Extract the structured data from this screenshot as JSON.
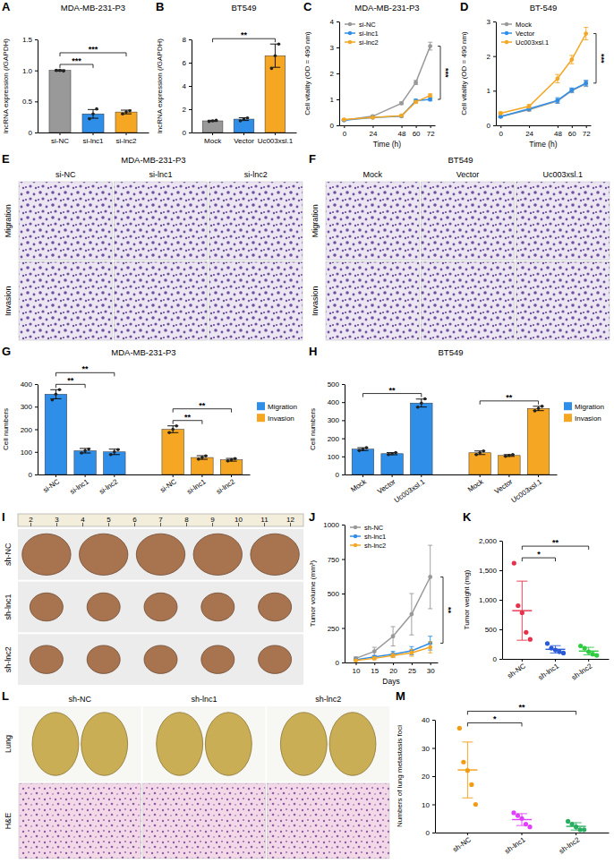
{
  "chart_data": [
    {
      "panel": "A",
      "type": "bar",
      "title": "MDA-MB-231-P3",
      "ylabel": "lncRNA expression (/GAPDH)",
      "categories": [
        "si-NC",
        "si-lnc1",
        "si-lnc2"
      ],
      "values": [
        1.0,
        0.3,
        0.33
      ],
      "errors": [
        0.01,
        0.07,
        0.03
      ],
      "points": [
        [
          1.0,
          1.0,
          0.99
        ],
        [
          0.22,
          0.3,
          0.38
        ],
        [
          0.3,
          0.33,
          0.35
        ]
      ],
      "colors": [
        "#999999",
        "#2f8fe8",
        "#f5a623"
      ],
      "ylim": [
        0,
        1.5
      ],
      "yticks": [
        0,
        0.5,
        {
          "value": 1,
          "label": "1.0"
        },
        1.5
      ],
      "annotations": [
        {
          "text": "***",
          "from": 0,
          "to": 1
        },
        {
          "text": "***",
          "from": 0,
          "to": 2
        }
      ]
    },
    {
      "panel": "B",
      "type": "bar",
      "title": "BT549",
      "ylabel": "lncRNA expression (/GAPDH)",
      "categories": [
        "Mock",
        "Vector",
        "Uc003xsl.1"
      ],
      "values": [
        1.0,
        1.15,
        6.6
      ],
      "errors": [
        0.05,
        0.12,
        1.0
      ],
      "points": [
        [
          0.95,
          1.0,
          1.05
        ],
        [
          1.0,
          1.15,
          1.25
        ],
        [
          5.5,
          6.6,
          7.6
        ]
      ],
      "colors": [
        "#999999",
        "#2f8fe8",
        "#f5a623"
      ],
      "ylim": [
        0,
        8
      ],
      "yticks": [
        0,
        2,
        4,
        6,
        8
      ],
      "annotations": [
        {
          "text": "**",
          "from": 0,
          "to": 2
        }
      ]
    },
    {
      "panel": "C",
      "type": "line",
      "title": "MDA-MB-231-P3",
      "xlabel": "Time (h)",
      "ylabel": "Cell vitality (OD = 490 nm)",
      "x": [
        0,
        24,
        48,
        60,
        72
      ],
      "xlim": [
        -4,
        76
      ],
      "xticks": [
        0,
        24,
        48,
        60,
        72
      ],
      "ylim": [
        0,
        4
      ],
      "yticks": [
        0,
        1,
        2,
        3,
        4
      ],
      "legend": "upper left",
      "marker": "circle",
      "series": [
        {
          "name": "si-NC",
          "color": "#999999",
          "values": [
            0.2,
            0.35,
            0.85,
            1.65,
            3.05
          ],
          "errors": [
            0.02,
            0.03,
            0.05,
            0.08,
            0.15
          ]
        },
        {
          "name": "si-lnc1",
          "color": "#2f8fe8",
          "values": [
            0.2,
            0.3,
            0.35,
            0.95,
            1.0
          ],
          "errors": [
            0.02,
            0.02,
            0.03,
            0.05,
            0.06
          ]
        },
        {
          "name": "si-lnc2",
          "color": "#f5a623",
          "values": [
            0.22,
            0.3,
            0.37,
            0.9,
            1.15
          ],
          "errors": [
            0.02,
            0.02,
            0.03,
            0.05,
            0.06
          ]
        }
      ],
      "annotations": [
        {
          "text": "***",
          "from": 0,
          "to": 1
        }
      ]
    },
    {
      "panel": "D",
      "type": "line",
      "title": "BT-549",
      "xlabel": "Time (h)",
      "ylabel": "Cell vitality (OD = 490 nm)",
      "x": [
        0,
        24,
        48,
        60,
        72
      ],
      "xlim": [
        -4,
        76
      ],
      "xticks": [
        0,
        24,
        48,
        60,
        72
      ],
      "ylim": [
        0,
        3
      ],
      "yticks": [
        0,
        1,
        2,
        3
      ],
      "legend": "upper left",
      "marker": "circle",
      "series": [
        {
          "name": "Mock",
          "color": "#999999",
          "values": [
            0.25,
            0.45,
            0.7,
            1.0,
            1.2
          ],
          "errors": [
            0.02,
            0.04,
            0.06,
            0.06,
            0.08
          ]
        },
        {
          "name": "Vector",
          "color": "#2f8fe8",
          "values": [
            0.25,
            0.48,
            0.72,
            1.02,
            1.22
          ],
          "errors": [
            0.02,
            0.04,
            0.08,
            0.06,
            0.08
          ]
        },
        {
          "name": "Uc003xsl.1",
          "color": "#f5a623",
          "values": [
            0.35,
            0.55,
            1.35,
            1.9,
            2.65
          ],
          "errors": [
            0.03,
            0.05,
            0.12,
            0.12,
            0.18
          ]
        }
      ],
      "annotations": [
        {
          "text": "***",
          "from": 2,
          "to": 1
        }
      ]
    },
    {
      "panel": "E",
      "type": "image",
      "title": "MDA-MB-231-P3",
      "columns": [
        "si-NC",
        "si-lnc1",
        "si-lnc2"
      ],
      "rows": [
        "Migration",
        "Invasion"
      ]
    },
    {
      "panel": "F",
      "type": "image",
      "title": "BT549",
      "columns": [
        "Mock",
        "Vector",
        "Uc003xsl.1"
      ],
      "rows": [
        "Migration",
        "Invasion"
      ]
    },
    {
      "panel": "G",
      "type": "bar",
      "title": "MDA-MB-231-P3",
      "ylabel": "Cell numbers",
      "categories": [
        "si-NC",
        "si-lnc1",
        "si-lnc2"
      ],
      "ylim": [
        0,
        400
      ],
      "yticks": [
        0,
        100,
        200,
        300,
        400
      ],
      "legend": "right",
      "series": [
        {
          "name": "Migration",
          "color": "#2f8fe8",
          "values": [
            355,
            105,
            100
          ],
          "errors": [
            20,
            10,
            12
          ],
          "points": [
            [
              330,
              355,
              375
            ],
            [
              95,
              105,
              112
            ],
            [
              88,
              100,
              110
            ]
          ]
        },
        {
          "name": "Invasion",
          "color": "#f5a623",
          "values": [
            200,
            75,
            65
          ],
          "errors": [
            15,
            8,
            6
          ],
          "points": [
            [
              185,
              200,
              215
            ],
            [
              68,
              75,
              82
            ],
            [
              60,
              65,
              70
            ]
          ]
        }
      ],
      "annotations": [
        {
          "text": "**",
          "series": 0,
          "from": 0,
          "to": 1
        },
        {
          "text": "**",
          "series": 0,
          "from": 0,
          "to": 2
        },
        {
          "text": "**",
          "series": 1,
          "from": 0,
          "to": 1
        },
        {
          "text": "**",
          "series": 1,
          "from": 0,
          "to": 2
        }
      ]
    },
    {
      "panel": "H",
      "type": "bar",
      "title": "BT549",
      "ylabel": "Cell numbers",
      "categories": [
        "Mock",
        "Vector",
        "Uc003xsl.1"
      ],
      "ylim": [
        0,
        500
      ],
      "yticks": [
        0,
        100,
        200,
        300,
        400,
        500
      ],
      "legend": "right",
      "series": [
        {
          "name": "Migration",
          "color": "#2f8fe8",
          "values": [
            140,
            115,
            395
          ],
          "errors": [
            8,
            6,
            22
          ],
          "points": [
            [
              132,
              140,
              148
            ],
            [
              110,
              115,
              121
            ],
            [
              372,
              395,
              418
            ]
          ]
        },
        {
          "name": "Invasion",
          "color": "#f5a623",
          "values": [
            120,
            105,
            365
          ],
          "errors": [
            10,
            5,
            12
          ],
          "points": [
            [
              110,
              120,
              130
            ],
            [
              100,
              105,
              110
            ],
            [
              352,
              365,
              377
            ]
          ]
        }
      ],
      "annotations": [
        {
          "text": "**",
          "series": 0,
          "from": 0,
          "to": 2
        },
        {
          "text": "**",
          "series": 1,
          "from": 0,
          "to": 2
        }
      ]
    },
    {
      "panel": "I",
      "type": "image",
      "rows": [
        "sh-NC",
        "sh-lnc1",
        "sh-lnc2"
      ],
      "ruler": [
        2,
        3,
        4,
        5,
        6,
        7,
        8,
        9,
        10,
        11,
        12
      ]
    },
    {
      "panel": "J",
      "type": "line",
      "xlabel": "Days",
      "ylabel": "Tumor volume (mm³)",
      "x": [
        10,
        15,
        20,
        25,
        30
      ],
      "xlim": [
        7,
        32
      ],
      "xticks": [
        10,
        15,
        20,
        25,
        30
      ],
      "ylim": [
        0,
        1000
      ],
      "yticks": [
        0,
        250,
        500,
        750,
        1000
      ],
      "legend": "upper left",
      "marker": "circle",
      "series": [
        {
          "name": "sh-NC",
          "color": "#999999",
          "values": [
            30,
            80,
            190,
            350,
            620
          ],
          "errors": [
            10,
            30,
            70,
            150,
            230
          ]
        },
        {
          "name": "sh-lnc1",
          "color": "#2f8fe8",
          "values": [
            20,
            40,
            60,
            85,
            140
          ],
          "errors": [
            5,
            10,
            20,
            30,
            50
          ]
        },
        {
          "name": "sh-lnc2",
          "color": "#f5a623",
          "values": [
            15,
            30,
            50,
            70,
            110
          ],
          "errors": [
            5,
            10,
            15,
            25,
            40
          ]
        }
      ],
      "annotations": [
        {
          "text": "**",
          "from": 0,
          "to": 1
        }
      ]
    },
    {
      "panel": "K",
      "type": "scatter",
      "ylabel": "Tumor weight (mg)",
      "categories": [
        "sh-NC",
        "sh-lnc1",
        "sh-lnc2"
      ],
      "points": [
        [
          1620,
          900,
          780,
          450,
          330
        ],
        [
          260,
          180,
          150,
          120,
          100
        ],
        [
          220,
          180,
          120,
          80,
          60
        ]
      ],
      "values": [
        816,
        162,
        132
      ],
      "errors": [
        500,
        62,
        64
      ],
      "colors": [
        "#e8304a",
        "#2a5bd7",
        "#2ecc40"
      ],
      "ylim": [
        0,
        2000
      ],
      "yticks": [
        0,
        500,
        {
          "value": 1000,
          "label": "1,000"
        },
        {
          "value": 1500,
          "label": "1,500"
        },
        {
          "value": 2000,
          "label": "2,000"
        }
      ],
      "annotations": [
        {
          "text": "*",
          "from": 0,
          "to": 1
        },
        {
          "text": "**",
          "from": 0,
          "to": 2
        }
      ]
    },
    {
      "panel": "L",
      "type": "image",
      "columns": [
        "sh-NC",
        "sh-lnc1",
        "sh-lnc2"
      ],
      "rows": [
        "Lung",
        "H&E"
      ]
    },
    {
      "panel": "M",
      "type": "scatter",
      "ylabel": "Numbers of lung metastasis foci",
      "categories": [
        "sh-NC",
        "sh-lnc1",
        "sh-lnc2"
      ],
      "points": [
        [
          37,
          25,
          22,
          17,
          10
        ],
        [
          7,
          6,
          5,
          3,
          2
        ],
        [
          4,
          3,
          2,
          1,
          1
        ]
      ],
      "values": [
        22.2,
        4.6,
        2.2
      ],
      "errors": [
        9.9,
        2.1,
        1.3
      ],
      "colors": [
        "#f39c12",
        "#e040fb",
        "#27ae60"
      ],
      "ylim": [
        0,
        40
      ],
      "yticks": [
        0,
        10,
        20,
        30,
        40
      ],
      "annotations": [
        {
          "text": "*",
          "from": 0,
          "to": 1
        },
        {
          "text": "**",
          "from": 0,
          "to": 2
        }
      ]
    }
  ]
}
